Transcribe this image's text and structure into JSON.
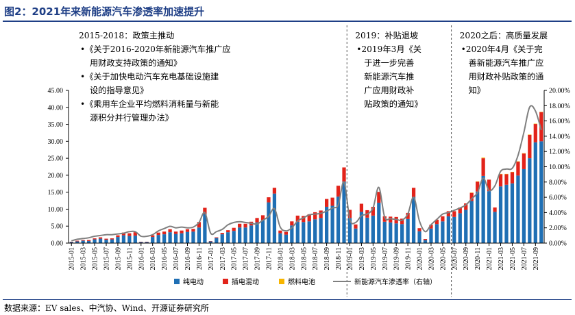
{
  "figure_title": "图2：2021年来新能源汽车渗透率加速提升",
  "source": "数据来源：EV sales、中汽协、Wind、开源证券研究所",
  "colors": {
    "pure_ev": "#1f6fb4",
    "phev": "#e2231a",
    "fuel_cell": "#f7b500",
    "penetration": "#7f7f7f",
    "title": "#1f3f86"
  },
  "annotations": [
    {
      "lines": [
        "2015-2018：政策主推动",
        "•《关于2016-2020年新能源汽车推广应",
        "用财政支持政策的通知》",
        "•《关于加快电动汽车充电基础设施建",
        "设的指导意见》",
        "•《乘用车企业平均燃料消耗量与新能",
        "源积分并行管理办法》"
      ]
    },
    {
      "lines": [
        "2019：补贴退坡",
        "•2019年3月《关",
        "于进一步完善",
        "新能源汽车推",
        "广应用财政补",
        "贴政策的通知》"
      ]
    },
    {
      "lines": [
        "2020之后：高质量发展",
        "•2020年4月《关于完",
        "善新能源汽车推广应",
        "用财政补贴政策的通",
        "知》"
      ]
    }
  ],
  "chart_data": {
    "type": "bar",
    "stacked": true,
    "x": [
      "2015-01",
      "2015-02",
      "2015-03",
      "2015-04",
      "2015-05",
      "2015-06",
      "2015-07",
      "2015-08",
      "2015-09",
      "2015-10",
      "2015-11",
      "2015-12",
      "2016-01",
      "2016-02",
      "2016-03",
      "2016-04",
      "2016-05",
      "2016-06",
      "2016-07",
      "2016-08",
      "2016-09",
      "2016-10",
      "2016-11",
      "2016-12",
      "2017-01",
      "2017-02",
      "2017-03",
      "2017-04",
      "2017-05",
      "2017-06",
      "2017-07",
      "2017-08",
      "2017-09",
      "2017-10",
      "2017-11",
      "2017-12",
      "2018-01",
      "2018-02",
      "2018-03",
      "2018-04",
      "2018-05",
      "2018-06",
      "2018-07",
      "2018-08",
      "2018-09",
      "2018-10",
      "2018-11",
      "2018-12",
      "2019-01",
      "2019-02",
      "2019-03",
      "2019-04",
      "2019-05",
      "2019-06",
      "2019-07",
      "2019-08",
      "2019-09",
      "2019-10",
      "2019-11",
      "2019-12",
      "2020-01",
      "2020-02",
      "2020-03",
      "2020-04",
      "2020-05",
      "2020-06",
      "2020-07",
      "2020-08",
      "2020-09",
      "2020-10",
      "2020-11",
      "2020-12",
      "2021-01",
      "2021-02",
      "2021-03",
      "2021-04",
      "2021-05",
      "2021-06",
      "2021-07",
      "2021-08",
      "2021-09",
      "2021-10"
    ],
    "x_tick_labels": [
      "2015-01",
      "2015-03",
      "2015-05",
      "2015-07",
      "2015-09",
      "2015-11",
      "2016-01",
      "2016-03",
      "2016-05",
      "2016-07",
      "2016-09",
      "2016-11",
      "2017-01",
      "2017-03",
      "2017-05",
      "2017-07",
      "2017-09",
      "2017-11",
      "2018-01",
      "2018-03",
      "2018-05",
      "2018-07",
      "2018-09",
      "2018-11",
      "2019-01",
      "2019-03",
      "2019-05",
      "2019-07",
      "2019-09",
      "2019-11",
      "2020-01",
      "2020-03",
      "2020-05",
      "2020-07",
      "2020-09",
      "2020-11",
      "2021-01",
      "2021-03",
      "2021-05",
      "2021-07",
      "2021-09"
    ],
    "series": [
      {
        "name": "纯电动",
        "values": [
          0.3,
          0.5,
          0.7,
          0.6,
          1.1,
          1.3,
          1.0,
          1.1,
          1.8,
          2.3,
          2.1,
          2.2,
          0.3,
          0.3,
          1.8,
          2.4,
          2.6,
          3.2,
          2.7,
          2.9,
          3.3,
          3.4,
          4.6,
          8.6,
          0.5,
          1.5,
          2.6,
          3.2,
          3.6,
          4.6,
          4.6,
          5.2,
          6.1,
          6.8,
          12.0,
          14.6,
          2.9,
          2.5,
          5.2,
          6.3,
          6.2,
          6.4,
          7.0,
          7.4,
          10.7,
          11.0,
          13.7,
          18.1,
          7.4,
          4.3,
          9.2,
          7.5,
          8.1,
          11.9,
          6.3,
          6.1,
          5.8,
          5.6,
          7.1,
          13.6,
          3.5,
          0.9,
          4.3,
          5.6,
          6.4,
          7.9,
          7.7,
          8.8,
          9.8,
          12.4,
          15.2,
          19.8,
          15.3,
          9.2,
          16.7,
          17.2,
          17.6,
          19.9,
          21.8,
          25.0,
          29.7,
          30.0
        ]
      },
      {
        "name": "插电混动",
        "values": [
          0.1,
          0.2,
          0.2,
          0.3,
          0.3,
          0.4,
          0.3,
          0.3,
          0.5,
          0.8,
          0.8,
          1.0,
          0.1,
          0.1,
          0.5,
          0.7,
          0.8,
          0.9,
          0.7,
          0.8,
          0.8,
          0.8,
          1.6,
          1.8,
          0.1,
          0.2,
          0.4,
          0.6,
          0.9,
          1.1,
          1.1,
          1.1,
          1.3,
          1.4,
          1.5,
          1.7,
          0.8,
          0.8,
          1.2,
          1.8,
          1.8,
          2.1,
          2.1,
          2.2,
          2.3,
          2.4,
          3.2,
          4.2,
          2.4,
          1.2,
          2.4,
          2.2,
          2.6,
          3.2,
          1.6,
          1.7,
          1.9,
          1.6,
          1.8,
          2.7,
          0.9,
          0.3,
          1.1,
          1.3,
          1.5,
          1.5,
          1.7,
          1.7,
          1.9,
          2.4,
          2.9,
          5.2,
          3.4,
          1.3,
          3.6,
          3.1,
          3.3,
          4.1,
          4.6,
          6.9,
          5.4,
          8.6
        ]
      },
      {
        "name": "燃料电池",
        "values": [
          0,
          0,
          0,
          0,
          0,
          0,
          0,
          0,
          0,
          0,
          0,
          0,
          0,
          0,
          0,
          0,
          0,
          0,
          0,
          0,
          0,
          0,
          0,
          0,
          0,
          0,
          0,
          0,
          0,
          0,
          0,
          0,
          0,
          0,
          0,
          0,
          0,
          0,
          0,
          0,
          0,
          0,
          0,
          0,
          0,
          0,
          0,
          0,
          0,
          0,
          0,
          0,
          0,
          0,
          0,
          0,
          0,
          0,
          0,
          0,
          0,
          0,
          0,
          0,
          0,
          0,
          0,
          0,
          0,
          0.1,
          0.1,
          0.2,
          0,
          0,
          0.1,
          0.1,
          0.1,
          0.1,
          0.1,
          0.1,
          0.1,
          0.1
        ]
      },
      {
        "name": "新能源汽车渗透率（右轴）",
        "axis": "right",
        "values": [
          0.3,
          0.5,
          0.6,
          0.7,
          0.9,
          1.0,
          1.1,
          1.1,
          1.2,
          1.3,
          1.5,
          1.5,
          0.9,
          0.9,
          1.1,
          1.6,
          1.9,
          2.2,
          2.0,
          2.1,
          2.0,
          2.1,
          2.7,
          4.0,
          1.3,
          1.5,
          1.8,
          2.4,
          2.7,
          2.8,
          2.7,
          2.6,
          2.5,
          3.0,
          3.5,
          4.5,
          2.1,
          1.6,
          2.0,
          2.9,
          3.3,
          3.7,
          3.8,
          3.9,
          4.2,
          4.6,
          5.0,
          8.0,
          3.1,
          2.7,
          3.6,
          3.8,
          4.6,
          7.3,
          3.4,
          3.2,
          3.1,
          3.0,
          3.8,
          6.0,
          2.9,
          1.5,
          2.4,
          3.1,
          3.8,
          4.0,
          4.3,
          4.6,
          5.0,
          5.8,
          6.6,
          8.5,
          6.9,
          7.5,
          9.4,
          9.7,
          9.8,
          11.5,
          14.5,
          17.8,
          17.3,
          14.8
        ]
      }
    ],
    "y_left": {
      "min": 0,
      "max": 45,
      "ticks": [
        "0.00",
        "5.00",
        "10.00",
        "15.00",
        "20.00",
        "25.00",
        "30.00",
        "35.00",
        "40.00",
        "45.00"
      ]
    },
    "y_right": {
      "min": 0,
      "max": 20,
      "ticks": [
        "0.00%",
        "2.00%",
        "4.00%",
        "6.00%",
        "8.00%",
        "10.00%",
        "12.00%",
        "14.00%",
        "16.00%",
        "18.00%",
        "20.00%"
      ]
    },
    "dividers_after": [
      "2018-12",
      "2020-06"
    ],
    "legend_position": "bottom"
  }
}
